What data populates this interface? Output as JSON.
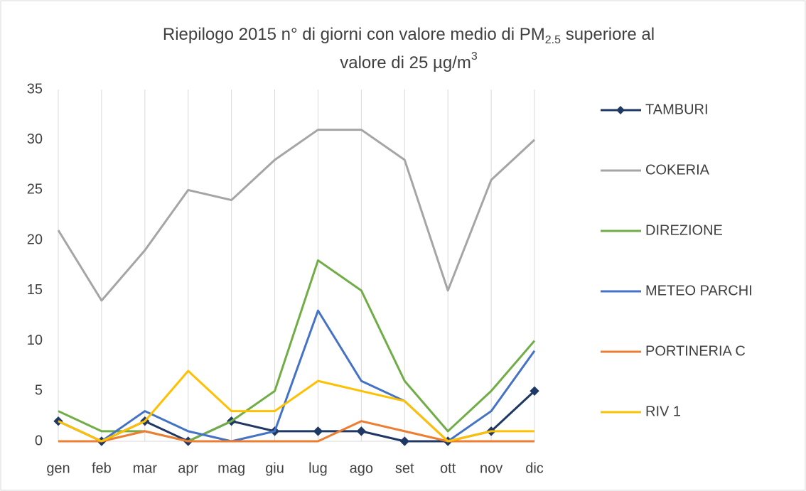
{
  "chart_data": {
    "type": "line",
    "title_parts": [
      "Riepilogo  2015 n° di giorni con valore medio di PM",
      "2.5",
      " superiore al",
      "valore di 25 µg/m",
      "3"
    ],
    "categories": [
      "gen",
      "feb",
      "mar",
      "apr",
      "mag",
      "giu",
      "lug",
      "ago",
      "set",
      "ott",
      "nov",
      "dic"
    ],
    "ylim": [
      0,
      35
    ],
    "yticks": [
      0,
      5,
      10,
      15,
      20,
      25,
      30,
      35
    ],
    "x_grid": true,
    "legend": "right",
    "series": [
      {
        "name": "TAMBURI",
        "color": "#1f3864",
        "marker": "diamond",
        "values": [
          2,
          0,
          2,
          0,
          2,
          1,
          1,
          1,
          0,
          0,
          1,
          5
        ]
      },
      {
        "name": "COKERIA",
        "color": "#a5a5a5",
        "values": [
          21,
          14,
          19,
          25,
          24,
          28,
          31,
          31,
          28,
          15,
          26,
          30
        ]
      },
      {
        "name": "DIREZIONE",
        "color": "#70ad47",
        "values": [
          3,
          1,
          1,
          0,
          2,
          5,
          18,
          15,
          6,
          1,
          5,
          10
        ]
      },
      {
        "name": "METEO PARCHI",
        "color": "#4472c4",
        "values": [
          2,
          0,
          3,
          1,
          0,
          1,
          13,
          6,
          4,
          0,
          3,
          9
        ]
      },
      {
        "name": "PORTINERIA C",
        "color": "#ed7d31",
        "values": [
          0,
          0,
          1,
          0,
          0,
          0,
          0,
          2,
          1,
          0,
          0,
          0
        ]
      },
      {
        "name": "RIV 1",
        "color": "#ffc000",
        "values": [
          2,
          0,
          2,
          7,
          3,
          3,
          6,
          5,
          4,
          0,
          1,
          1
        ]
      }
    ]
  }
}
